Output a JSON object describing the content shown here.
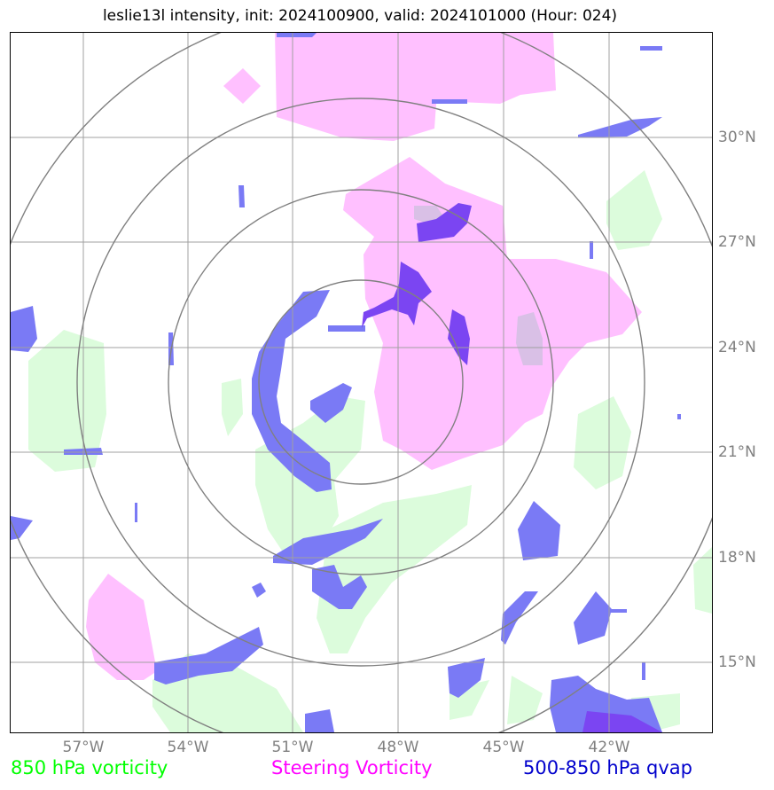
{
  "title": "leslie13l intensity, init: 2024100900, valid: 2024101000 (Hour: 024)",
  "map": {
    "lon_labels": [
      "57°W",
      "54°W",
      "51°W",
      "48°W",
      "45°W",
      "42°W"
    ],
    "lat_labels": [
      "30°N",
      "27°N",
      "24°N",
      "21°N",
      "18°N",
      "15°N"
    ],
    "gridline_color": "#a0a0a0",
    "range_ring_color": "#808080",
    "range_ring_count": 4
  },
  "legend": [
    {
      "label": "850 hPa vorticity",
      "color": "#00ff00"
    },
    {
      "label": "Steering Vorticity",
      "color": "#ff00ff"
    },
    {
      "label": "500-850 hPa qvap",
      "color": "#0000cc"
    }
  ],
  "fills": {
    "green": "#dcfcdc",
    "pink": "#ffc0ff",
    "blue": "#7a7af5",
    "purple": "#7b45f2"
  }
}
